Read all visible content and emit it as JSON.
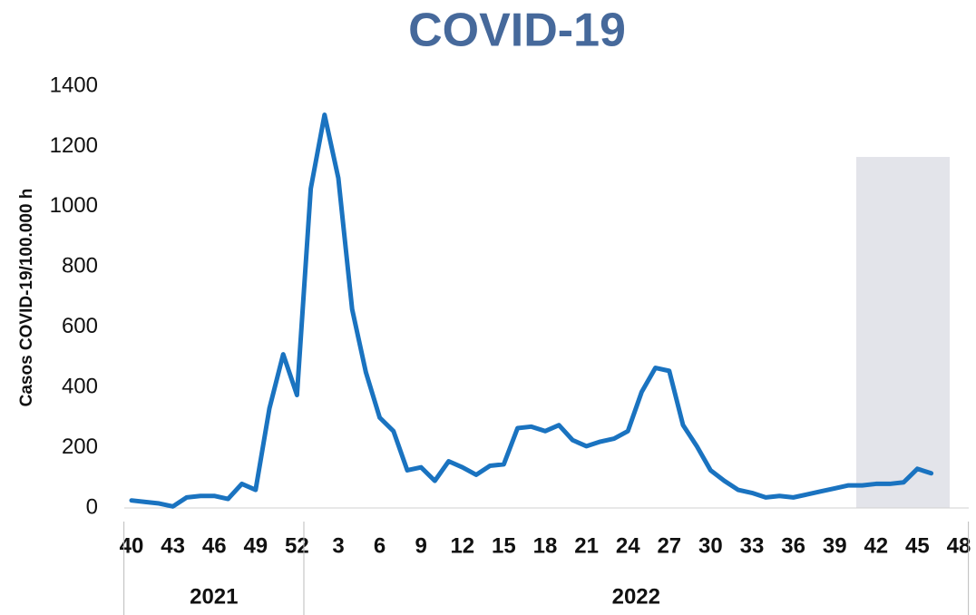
{
  "chart_data": {
    "type": "line",
    "title": "COVID-19",
    "y_label": "Casos COVID-19/100.000 h",
    "categories": [
      "40",
      null,
      null,
      "43",
      null,
      null,
      "46",
      null,
      null,
      "49",
      null,
      null,
      "52",
      null,
      null,
      "3",
      null,
      null,
      "6",
      null,
      null,
      "9",
      null,
      null,
      "12",
      null,
      null,
      "15",
      null,
      null,
      "18",
      null,
      null,
      "21",
      null,
      null,
      "24",
      null,
      null,
      "27",
      null,
      null,
      "30",
      null,
      null,
      "33",
      null,
      null,
      "36",
      null,
      null,
      "39",
      null,
      null,
      "42",
      null,
      null,
      "45",
      null,
      null,
      "48"
    ],
    "groups": [
      "2021",
      "2022"
    ],
    "series": [
      {
        "name": "Casos",
        "color": "#1a73c0",
        "values": [
          25,
          20,
          15,
          5,
          35,
          40,
          40,
          30,
          80,
          60,
          330,
          510,
          375,
          1060,
          1305,
          1095,
          660,
          450,
          300,
          255,
          125,
          135,
          90,
          155,
          135,
          110,
          140,
          145,
          265,
          270,
          255,
          275,
          225,
          205,
          220,
          230,
          255,
          385,
          465,
          455,
          275,
          205,
          125,
          90,
          60,
          50,
          35,
          40,
          35,
          45,
          55,
          65,
          75,
          75,
          80,
          80,
          85,
          130,
          115,
          null,
          null
        ]
      }
    ],
    "ylim": [
      0,
      1400
    ],
    "yticks": [
      0,
      200,
      400,
      600,
      800,
      1000,
      1200,
      1400
    ],
    "grid": false
  }
}
